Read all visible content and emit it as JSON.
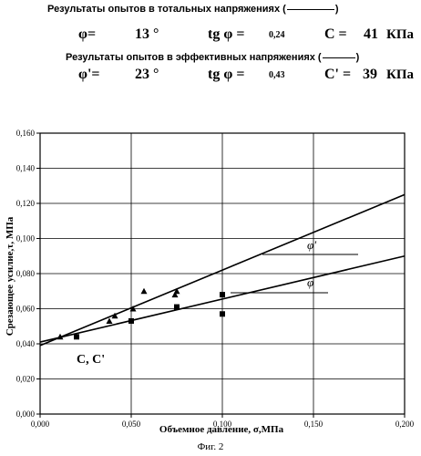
{
  "header": {
    "total_title": "Результаты опытов в тотальных напряжениях (",
    "total_close": ")",
    "total_params": {
      "phi_label": "φ=",
      "phi_value": "13 °",
      "tg_label": "tg φ =",
      "tg_value": "0,24",
      "c_label": "C =",
      "c_value": "41",
      "unit": "КПа"
    },
    "effective_title": "Результаты опытов в эффективных напряжениях (",
    "effective_close": ")",
    "effective_params": {
      "phi_label": "φ'=",
      "phi_value": "23 °",
      "tg_label": "tg φ =",
      "tg_value": "0,43",
      "c_label": "C' =",
      "c_value": "39",
      "unit": "КПа"
    }
  },
  "chart_data": {
    "type": "scatter",
    "xlabel": "Объемное давление, σ,МПа",
    "ylabel": "Срезающее усилие,τ, МПа",
    "xlim": [
      0,
      0.2
    ],
    "ylim": [
      0,
      0.16
    ],
    "x_ticks": [
      "0,000",
      "0,050",
      "0,100",
      "0,150",
      "0,200"
    ],
    "y_ticks": [
      "0,000",
      "0,020",
      "0,040",
      "0,060",
      "0,080",
      "0,100",
      "0,120",
      "0,140",
      "0,160"
    ],
    "series": [
      {
        "name": "φ'",
        "marker": "triangle",
        "points": [
          [
            0.011,
            0.044
          ],
          [
            0.038,
            0.053
          ],
          [
            0.041,
            0.056
          ],
          [
            0.051,
            0.06
          ],
          [
            0.057,
            0.07
          ],
          [
            0.074,
            0.068
          ],
          [
            0.075,
            0.07
          ]
        ],
        "line": {
          "intercept": 0.039,
          "slope": 0.43
        }
      },
      {
        "name": "φ",
        "marker": "square",
        "points": [
          [
            0.02,
            0.044
          ],
          [
            0.05,
            0.053
          ],
          [
            0.075,
            0.061
          ],
          [
            0.1,
            0.068
          ],
          [
            0.1,
            0.057
          ]
        ],
        "line": {
          "intercept": 0.041,
          "slope": 0.245
        }
      }
    ],
    "annotations": {
      "intercept_label": "C, C'",
      "phi_prime_label": "φ'",
      "phi_label": "φ"
    }
  },
  "caption": "Фиг. 2"
}
